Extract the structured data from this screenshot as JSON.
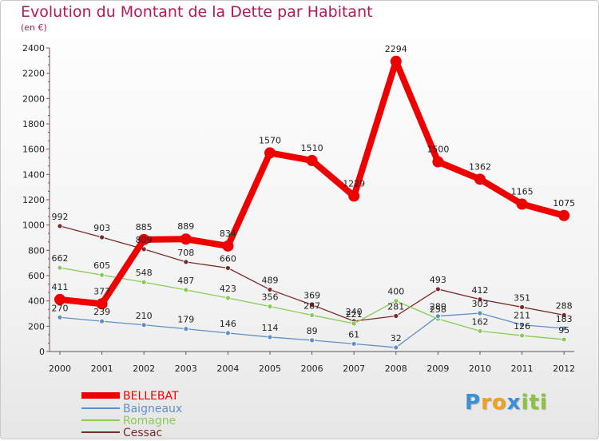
{
  "title": "Evolution du Montant de la Dette par Habitant",
  "subtitle": "(en €)",
  "logo": {
    "letters": [
      "P",
      "r",
      "o",
      "x",
      "i",
      "t",
      "i"
    ],
    "colors": [
      "#3a8fd6",
      "#f0a020",
      "#f0a020",
      "#3a8fd6",
      "#8ac43f",
      "#8ac43f",
      "#8ac43f"
    ]
  },
  "legend": [
    {
      "label": "BELLEBAT",
      "color": "#ee0000"
    },
    {
      "label": "Baigneaux",
      "color": "#5f8fc9"
    },
    {
      "label": "Romagne",
      "color": "#88cc55"
    },
    {
      "label": "Cessac",
      "color": "#7b2a2a"
    }
  ],
  "chart_data": {
    "type": "line",
    "title": "Evolution du Montant de la Dette par Habitant",
    "subtitle": "(en €)",
    "x": [
      "2000",
      "2001",
      "2002",
      "2003",
      "2004",
      "2005",
      "2006",
      "2007",
      "2008",
      "2009",
      "2010",
      "2011",
      "2012"
    ],
    "y_ticks": [
      "0",
      "200",
      "400",
      "600",
      "800",
      "1000",
      "1200",
      "1400",
      "1600",
      "1800",
      "2000",
      "2200",
      "2400"
    ],
    "ylim": [
      0,
      2400
    ],
    "grid": false,
    "legend_position": "bottom-left",
    "series": [
      {
        "name": "BELLEBAT",
        "color": "#ee0000",
        "values": [
          411,
          377,
          885,
          889,
          834,
          1570,
          1510,
          1229,
          2294,
          1500,
          1362,
          1165,
          1075
        ],
        "labels": [
          "411",
          "377",
          "885",
          "889",
          "834",
          "1570",
          "1510",
          "1229",
          "2294",
          "1500",
          "1362",
          "1165",
          "1075"
        ]
      },
      {
        "name": "Baigneaux",
        "color": "#5f8fc9",
        "values": [
          270,
          239,
          210,
          179,
          146,
          114,
          89,
          61,
          32,
          280,
          303,
          211,
          183
        ],
        "labels": [
          "270",
          "239",
          "210",
          "179",
          "146",
          "114",
          "89",
          "61",
          "32",
          "280",
          "303",
          "211",
          "183"
        ]
      },
      {
        "name": "Romagne",
        "color": "#88cc55",
        "values": [
          662,
          605,
          548,
          487,
          423,
          356,
          287,
          221,
          400,
          258,
          162,
          126,
          95
        ],
        "labels": [
          "662",
          "605",
          "548",
          "487",
          "423",
          "356",
          "287",
          "221",
          "400",
          "258",
          "162",
          "126",
          "95"
        ]
      },
      {
        "name": "Cessac",
        "color": "#7b2a2a",
        "values": [
          992,
          903,
          809,
          708,
          660,
          489,
          369,
          240,
          281,
          493,
          412,
          351,
          288
        ],
        "labels": [
          "992",
          "903",
          "809",
          "708",
          "660",
          "489",
          "369",
          "240",
          "281",
          "493",
          "412",
          "351",
          "288"
        ]
      }
    ]
  }
}
